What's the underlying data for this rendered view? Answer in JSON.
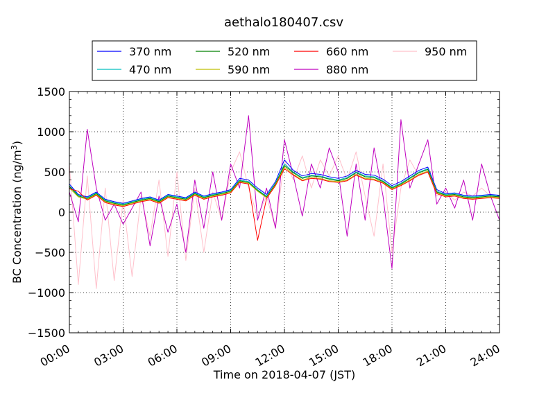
{
  "chart_data": {
    "type": "line",
    "title": "aethalo180407.csv",
    "xlabel": "Time on 2018-04-07 (JST)",
    "ylabel": "BC Concentration (ng/m",
    "ylabel_sup": "3",
    "ylabel_close": ")",
    "xlim": [
      0,
      24
    ],
    "ylim": [
      -1500,
      1500
    ],
    "grid": true,
    "legend_position": "top-center",
    "x_ticks": [
      {
        "value": 0,
        "label": "00:00"
      },
      {
        "value": 3,
        "label": "03:00"
      },
      {
        "value": 6,
        "label": "06:00"
      },
      {
        "value": 9,
        "label": "09:00"
      },
      {
        "value": 12,
        "label": "12:00"
      },
      {
        "value": 15,
        "label": "15:00"
      },
      {
        "value": 18,
        "label": "18:00"
      },
      {
        "value": 21,
        "label": "21:00"
      },
      {
        "value": 24,
        "label": "24:00"
      }
    ],
    "y_ticks": [
      {
        "value": 1500,
        "label": "1500"
      },
      {
        "value": 1000,
        "label": "1000"
      },
      {
        "value": 500,
        "label": "500"
      },
      {
        "value": 0,
        "label": "0"
      },
      {
        "value": -500,
        "label": "−500"
      },
      {
        "value": -1000,
        "label": "−1000"
      },
      {
        "value": -1500,
        "label": "−1500"
      }
    ],
    "x": [
      0,
      0.5,
      1,
      1.5,
      2,
      2.5,
      3,
      3.5,
      4,
      4.5,
      5,
      5.5,
      6,
      6.5,
      7,
      7.5,
      8,
      8.5,
      9,
      9.5,
      10,
      10.5,
      11,
      11.5,
      12,
      12.5,
      13,
      13.5,
      14,
      14.5,
      15,
      15.5,
      16,
      16.5,
      17,
      17.5,
      18,
      18.5,
      19,
      19.5,
      20,
      20.5,
      21,
      21.5,
      22,
      22.5,
      23,
      23.5,
      24
    ],
    "series": [
      {
        "name": "370 nm",
        "color": "#0000ff",
        "values": [
          350,
          220,
          190,
          250,
          160,
          130,
          110,
          140,
          170,
          190,
          150,
          220,
          200,
          180,
          250,
          200,
          230,
          250,
          280,
          420,
          400,
          300,
          220,
          380,
          650,
          520,
          450,
          480,
          470,
          440,
          420,
          450,
          520,
          470,
          460,
          410,
          330,
          380,
          450,
          520,
          560,
          280,
          230,
          240,
          210,
          200,
          210,
          220,
          210
        ]
      },
      {
        "name": "470 nm",
        "color": "#00bfbf",
        "values": [
          330,
          210,
          180,
          240,
          150,
          120,
          100,
          130,
          160,
          180,
          140,
          210,
          190,
          170,
          240,
          190,
          220,
          240,
          270,
          400,
          380,
          280,
          200,
          360,
          600,
          500,
          430,
          460,
          450,
          420,
          400,
          430,
          500,
          450,
          440,
          390,
          310,
          360,
          430,
          500,
          540,
          260,
          220,
          230,
          200,
          190,
          200,
          210,
          200
        ]
      },
      {
        "name": "520 nm",
        "color": "#008000",
        "values": [
          320,
          200,
          170,
          230,
          140,
          110,
          90,
          120,
          150,
          170,
          130,
          200,
          180,
          160,
          230,
          180,
          210,
          230,
          260,
          390,
          370,
          270,
          190,
          350,
          580,
          490,
          420,
          450,
          440,
          410,
          390,
          420,
          490,
          440,
          430,
          380,
          300,
          350,
          420,
          490,
          530,
          250,
          210,
          220,
          190,
          180,
          190,
          200,
          190
        ]
      },
      {
        "name": "590 nm",
        "color": "#bfbf00",
        "values": [
          300,
          190,
          160,
          220,
          130,
          100,
          80,
          110,
          140,
          160,
          120,
          190,
          170,
          150,
          220,
          170,
          200,
          220,
          250,
          380,
          360,
          260,
          180,
          340,
          560,
          470,
          400,
          430,
          420,
          390,
          380,
          400,
          470,
          420,
          410,
          370,
          290,
          340,
          400,
          470,
          510,
          240,
          200,
          210,
          180,
          170,
          180,
          190,
          180
        ]
      },
      {
        "name": "660 nm",
        "color": "#ff0000",
        "values": [
          290,
          260,
          150,
          210,
          120,
          90,
          70,
          100,
          130,
          150,
          110,
          180,
          160,
          140,
          210,
          160,
          190,
          210,
          240,
          370,
          350,
          -350,
          170,
          330,
          540,
          460,
          390,
          420,
          410,
          380,
          370,
          390,
          460,
          410,
          400,
          360,
          280,
          330,
          390,
          460,
          500,
          230,
          190,
          200,
          170,
          160,
          170,
          180,
          170
        ]
      },
      {
        "name": "880 nm",
        "color": "#bf00bf",
        "values": [
          250,
          -120,
          1030,
          300,
          -100,
          100,
          -150,
          50,
          250,
          -420,
          200,
          -250,
          100,
          -500,
          400,
          -200,
          500,
          -100,
          600,
          300,
          1200,
          -100,
          300,
          -200,
          900,
          450,
          -50,
          600,
          300,
          800,
          500,
          -300,
          600,
          -100,
          800,
          200,
          -700,
          1150,
          300,
          600,
          900,
          100,
          300,
          50,
          400,
          -100,
          600,
          200,
          -100
        ]
      },
      {
        "name": "950 nm",
        "color": "#ffc0cb",
        "values": [
          600,
          -900,
          450,
          -950,
          300,
          -850,
          150,
          -800,
          200,
          -300,
          400,
          -550,
          500,
          -600,
          300,
          -500,
          250,
          -100,
          500,
          750,
          300,
          -50,
          200,
          -200,
          650,
          400,
          700,
          300,
          650,
          450,
          700,
          400,
          750,
          200,
          -300,
          600,
          -500,
          300,
          650,
          450,
          500,
          200,
          250,
          150,
          250,
          200,
          300,
          200,
          180
        ]
      }
    ]
  }
}
